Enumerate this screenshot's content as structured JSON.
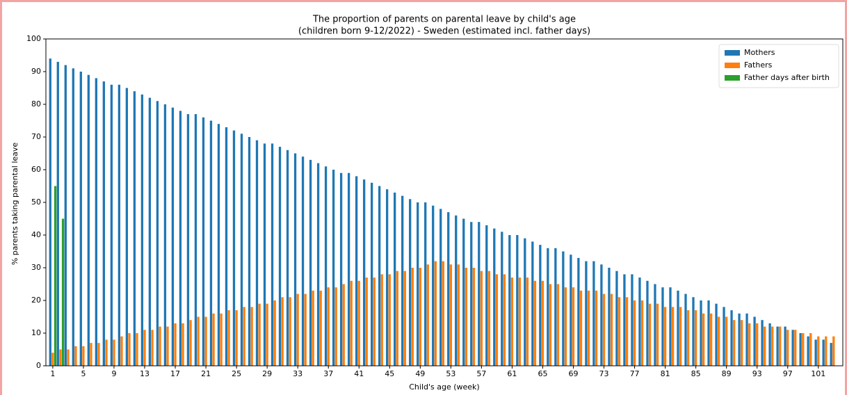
{
  "chart_data": {
    "type": "bar",
    "title": [
      "The proportion of parents on parental leave by child's age",
      "(children born 9-12/2022) - Sweden (estimated incl. father days)"
    ],
    "x_label": "Child's age (week)",
    "y_label": "% parents taking parental leave",
    "x": [
      1,
      2,
      3,
      4,
      5,
      6,
      7,
      8,
      9,
      10,
      11,
      12,
      13,
      14,
      15,
      16,
      17,
      18,
      19,
      20,
      21,
      22,
      23,
      24,
      25,
      26,
      27,
      28,
      29,
      30,
      31,
      32,
      33,
      34,
      35,
      36,
      37,
      38,
      39,
      40,
      41,
      42,
      43,
      44,
      45,
      46,
      47,
      48,
      49,
      50,
      51,
      52,
      53,
      54,
      55,
      56,
      57,
      58,
      59,
      60,
      61,
      62,
      63,
      64,
      65,
      66,
      67,
      68,
      69,
      70,
      71,
      72,
      73,
      74,
      75,
      76,
      77,
      78,
      79,
      80,
      81,
      82,
      83,
      84,
      85,
      86,
      87,
      88,
      89,
      90,
      91,
      92,
      93,
      94,
      95,
      96,
      97,
      98,
      99,
      100,
      101,
      102,
      103
    ],
    "series": [
      {
        "name": "Mothers",
        "color": "#1f77b4",
        "values": [
          94,
          93,
          92,
          91,
          90,
          89,
          88,
          87,
          86,
          86,
          85,
          84,
          83,
          82,
          81,
          80,
          79,
          78,
          77,
          77,
          76,
          75,
          74,
          73,
          72,
          71,
          70,
          69,
          68,
          68,
          67,
          66,
          65,
          64,
          63,
          62,
          61,
          60,
          59,
          59,
          58,
          57,
          56,
          55,
          54,
          53,
          52,
          51,
          50,
          50,
          49,
          48,
          47,
          46,
          45,
          44,
          44,
          43,
          42,
          41,
          40,
          40,
          39,
          38,
          37,
          36,
          36,
          35,
          34,
          33,
          32,
          32,
          31,
          30,
          29,
          28,
          28,
          27,
          26,
          25,
          24,
          24,
          23,
          22,
          21,
          20,
          20,
          19,
          18,
          17,
          16,
          16,
          15,
          14,
          13,
          12,
          12,
          11,
          10,
          9,
          8,
          8,
          7
        ]
      },
      {
        "name": "Fathers",
        "color": "#ff7f0e",
        "values": [
          4,
          5,
          5,
          6,
          6,
          7,
          7,
          8,
          8,
          9,
          10,
          10,
          11,
          11,
          12,
          12,
          13,
          13,
          14,
          15,
          15,
          16,
          16,
          17,
          17,
          18,
          18,
          19,
          19,
          20,
          21,
          21,
          22,
          22,
          23,
          23,
          24,
          24,
          25,
          26,
          26,
          27,
          27,
          28,
          28,
          29,
          29,
          30,
          30,
          31,
          32,
          32,
          31,
          31,
          30,
          30,
          29,
          29,
          28,
          28,
          27,
          27,
          27,
          26,
          26,
          25,
          25,
          24,
          24,
          23,
          23,
          23,
          22,
          22,
          21,
          21,
          20,
          20,
          19,
          19,
          18,
          18,
          18,
          17,
          17,
          16,
          16,
          15,
          15,
          14,
          14,
          13,
          13,
          12,
          12,
          12,
          11,
          11,
          10,
          10,
          9,
          9,
          9
        ]
      },
      {
        "name": "Father days after birth",
        "color": "#2ca02c",
        "values": [
          55,
          45,
          null,
          null,
          null,
          null,
          null,
          null,
          null,
          null,
          null,
          null,
          null,
          null,
          null,
          null,
          null,
          null,
          null,
          null,
          null,
          null,
          null,
          null,
          null,
          null,
          null,
          null,
          null,
          null,
          null,
          null,
          null,
          null,
          null,
          null,
          null,
          null,
          null,
          null,
          null,
          null,
          null,
          null,
          null,
          null,
          null,
          null,
          null,
          null,
          null,
          null,
          null,
          null,
          null,
          null,
          null,
          null,
          null,
          null,
          null,
          null,
          null,
          null,
          null,
          null,
          null,
          null,
          null,
          null,
          null,
          null,
          null,
          null,
          null,
          null,
          null,
          null,
          null,
          null,
          null,
          null,
          null,
          null,
          null,
          null,
          null,
          null,
          null,
          null,
          null,
          null,
          null,
          null,
          null,
          null,
          null,
          null,
          null,
          null,
          null,
          null,
          null
        ]
      }
    ],
    "xlim": [
      0.1,
      104.2
    ],
    "xticks": [
      1,
      5,
      9,
      13,
      17,
      21,
      25,
      29,
      33,
      37,
      41,
      45,
      49,
      53,
      57,
      61,
      65,
      69,
      73,
      77,
      81,
      85,
      89,
      93,
      97,
      101
    ],
    "ylim": [
      0,
      100
    ],
    "yticks": [
      0,
      10,
      20,
      30,
      40,
      50,
      60,
      70,
      80,
      90,
      100
    ],
    "legend": "upper right"
  }
}
